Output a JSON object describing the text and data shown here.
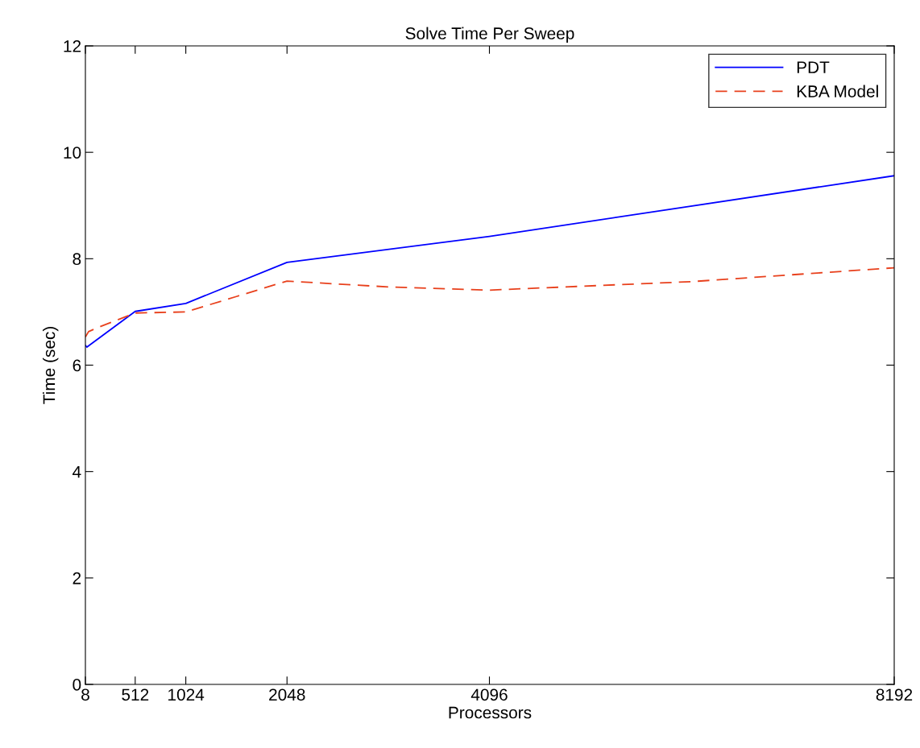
{
  "chart_data": {
    "type": "line",
    "title": "Solve Time Per Sweep",
    "xlabel": "Processors",
    "ylabel": "Time (sec)",
    "xlim": [
      8,
      8192
    ],
    "xticks": [
      8,
      512,
      1024,
      2048,
      4096,
      8192
    ],
    "ylim": [
      0,
      12
    ],
    "yticks": [
      0,
      2,
      4,
      6,
      8,
      10,
      12
    ],
    "grid": false,
    "legend": "top right",
    "series": [
      {
        "name": "PDT",
        "color": "#0000ff",
        "line_style": "solid",
        "x": [
          8,
          24,
          512,
          1024,
          2048,
          4096,
          8192
        ],
        "values": [
          6.37,
          6.34,
          7.01,
          7.16,
          7.93,
          8.42,
          9.56
        ]
      },
      {
        "name": "KBA Model",
        "color": "#e8401c",
        "line_style": "dashed",
        "x": [
          8,
          40,
          150,
          512,
          1024,
          1536,
          2048,
          3072,
          4096,
          6144,
          8192
        ],
        "values": [
          6.53,
          6.63,
          6.72,
          6.98,
          7.0,
          7.29,
          7.58,
          7.47,
          7.41,
          7.57,
          7.83
        ]
      }
    ]
  }
}
